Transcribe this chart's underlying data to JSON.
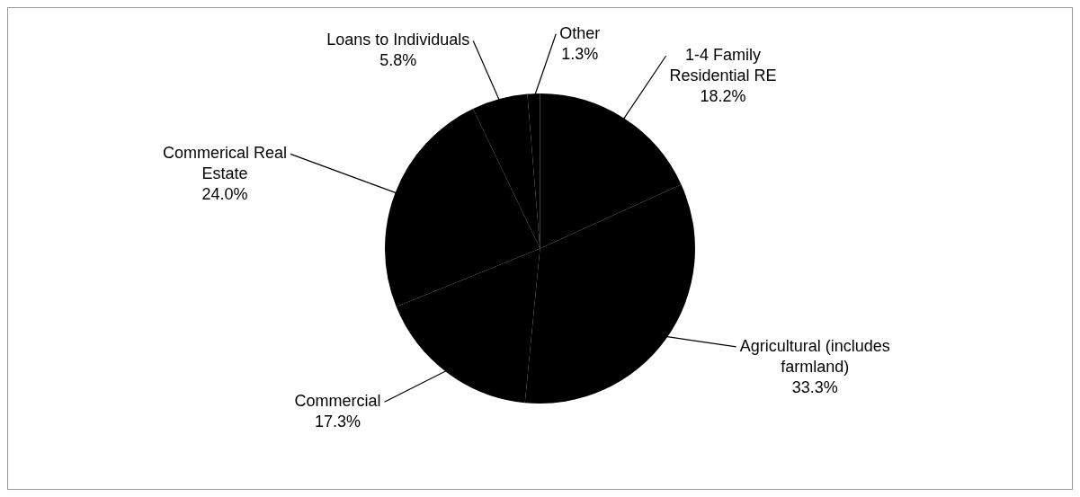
{
  "chart_data": {
    "type": "pie",
    "categories": [
      "1-4 Family Residential RE",
      "Agricultural (includes farmland)",
      "Commercial",
      "Commerical Real Estate",
      "Loans to Individuals",
      "Other"
    ],
    "values": [
      18.2,
      33.3,
      17.3,
      24.0,
      5.8,
      1.3
    ],
    "colors": [
      "#000000",
      "#000000",
      "#000000",
      "#000000",
      "#000000",
      "#000000"
    ],
    "value_labels": [
      "18.2%",
      "33.3%",
      "17.3%",
      "24.0%",
      "5.8%",
      "1.3%"
    ],
    "legend": false
  }
}
